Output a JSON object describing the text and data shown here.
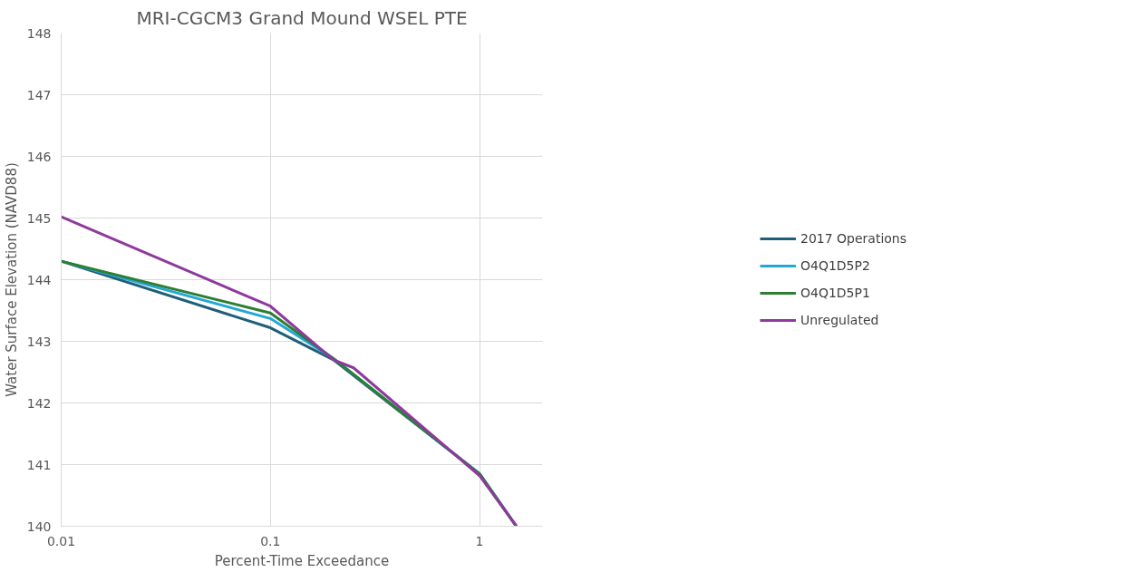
{
  "chart_data": {
    "type": "line",
    "title": "MRI-CGCM3 Grand Mound WSEL PTE",
    "xlabel": "Percent-Time Exceedance",
    "ylabel": "Water Surface Elevation (NAVD88)",
    "log": "x",
    "xlim": [
      0.01,
      2
    ],
    "xticks": [
      0.01,
      0.1,
      1
    ],
    "ylim": [
      140,
      148
    ],
    "yticks": [
      140,
      141,
      142,
      143,
      144,
      145,
      146,
      147,
      148
    ],
    "grid": true,
    "legend": "right",
    "marker": "none",
    "line_style": "solid",
    "series": [
      {
        "name": "2017 Operations",
        "color": "#1f5f7a",
        "x": [
          0.01,
          0.1,
          0.2,
          1,
          1.5
        ],
        "values": [
          144.3,
          143.22,
          142.7,
          140.85,
          140
        ]
      },
      {
        "name": "O4Q1D5P2",
        "color": "#22a7d6",
        "x": [
          0.01,
          0.1,
          0.2,
          1,
          1.5
        ],
        "values": [
          144.3,
          143.37,
          142.72,
          140.85,
          140
        ]
      },
      {
        "name": "O4Q1D5P1",
        "color": "#2e7d32",
        "x": [
          0.01,
          0.1,
          0.2,
          1,
          1.5
        ],
        "values": [
          144.3,
          143.46,
          142.72,
          140.85,
          140
        ]
      },
      {
        "name": "Unregulated",
        "color": "#8e3a9c",
        "x": [
          0.01,
          0.1,
          0.2,
          0.25,
          1,
          1.5
        ],
        "values": [
          145.02,
          143.57,
          142.7,
          142.57,
          140.82,
          140
        ]
      }
    ]
  }
}
